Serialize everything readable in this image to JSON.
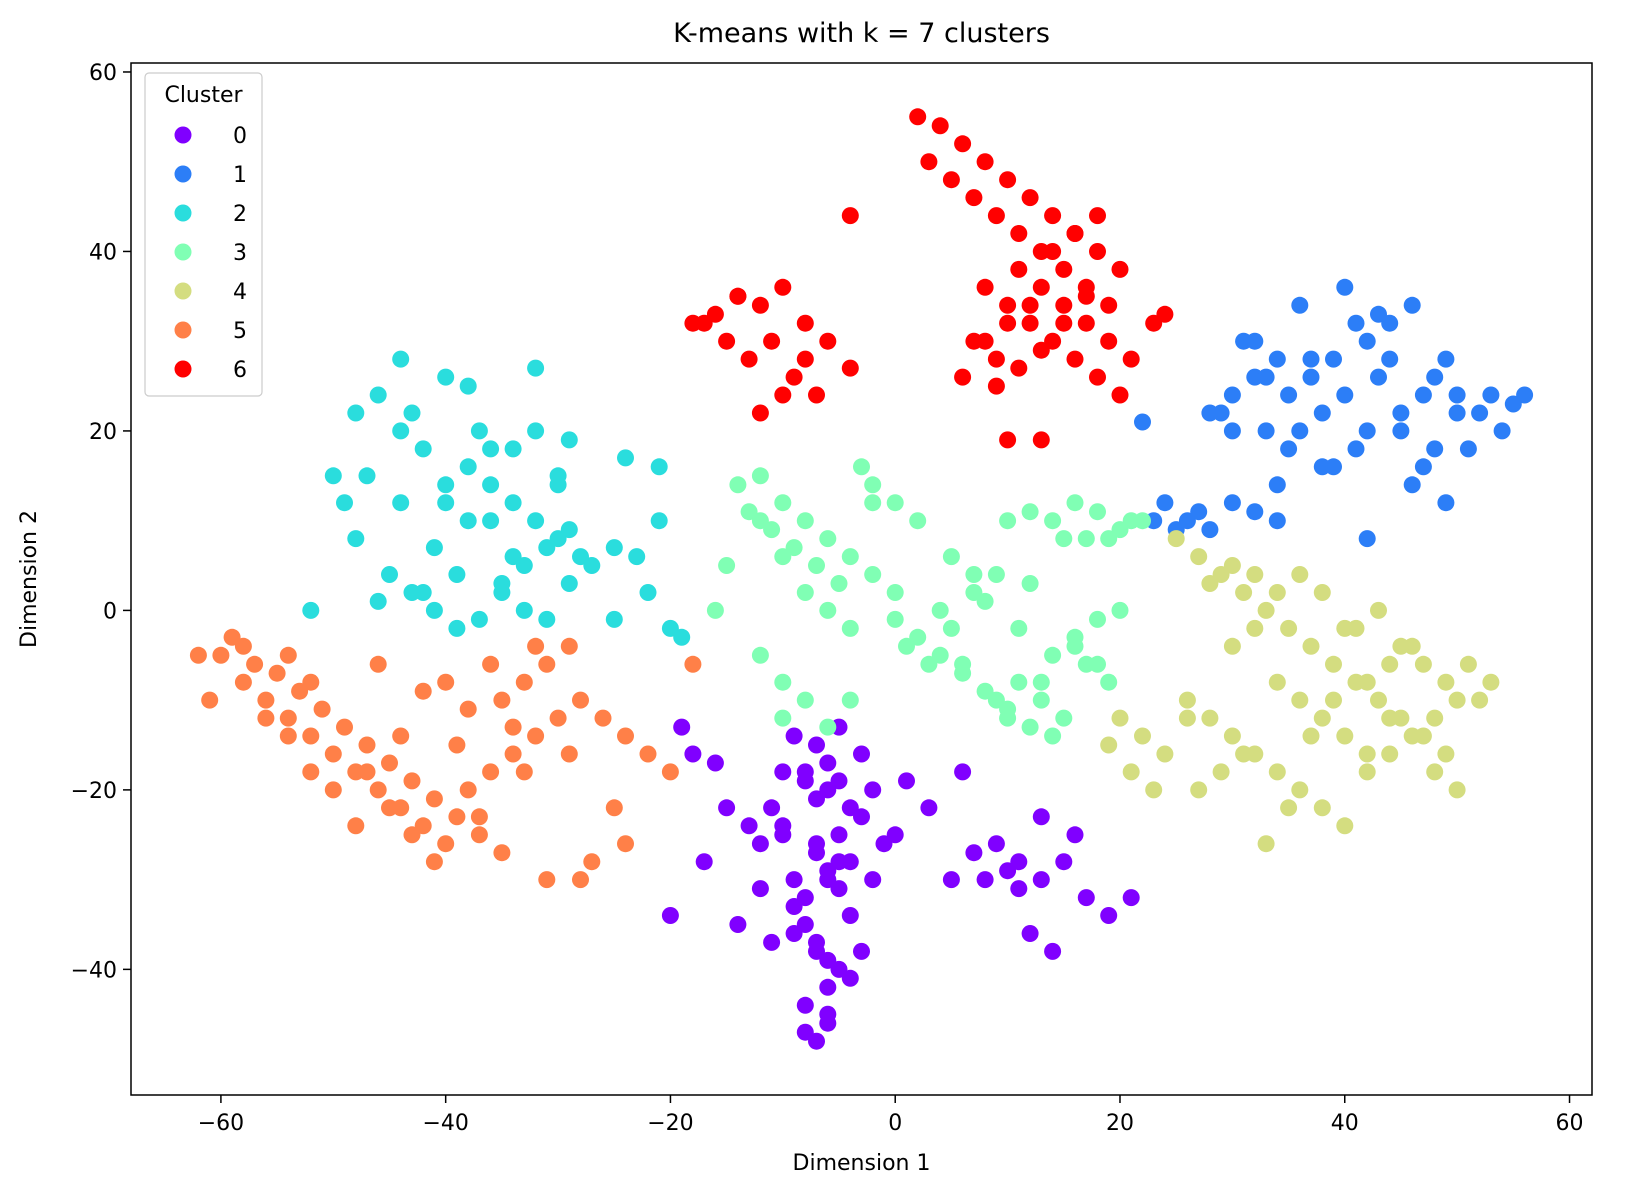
{
  "chart_data": {
    "type": "scatter",
    "title": "K-means with k = 7 clusters",
    "xlabel": "Dimension 1",
    "ylabel": "Dimension 2",
    "xlim": [
      -68,
      62
    ],
    "ylim": [
      -54,
      61
    ],
    "xticks": [
      -60,
      -40,
      -20,
      0,
      20,
      40,
      60
    ],
    "yticks": [
      -40,
      -20,
      0,
      20,
      40,
      60
    ],
    "grid": false,
    "legend": {
      "title": "Cluster",
      "placement": "top-left"
    },
    "series": [
      {
        "name": "0",
        "color": "#8000ff",
        "x": [
          -9,
          -7,
          -5,
          -3,
          -8,
          -6,
          -4,
          -10,
          -7,
          -5,
          -6,
          -8,
          -4,
          -9,
          -7,
          -5,
          -6,
          -8,
          -10,
          -7,
          -6,
          -5,
          -9,
          -8,
          -7,
          -6,
          -4,
          -11,
          -12,
          -6,
          -2,
          -3,
          -5,
          -7,
          -8,
          -6,
          -5,
          -9,
          -4,
          -6,
          -7,
          -8,
          -3,
          -2,
          -1,
          -13,
          -12,
          -10,
          -16,
          -18,
          -15,
          -14,
          -11,
          -17,
          -19,
          -20,
          0,
          1,
          3,
          5,
          7,
          9,
          11,
          13,
          15,
          17,
          19,
          21,
          12,
          14,
          16,
          13,
          11,
          10,
          6,
          8
        ],
        "y": [
          -14,
          -15,
          -13,
          -16,
          -18,
          -20,
          -22,
          -24,
          -26,
          -28,
          -30,
          -32,
          -34,
          -36,
          -38,
          -40,
          -42,
          -44,
          -25,
          -27,
          -29,
          -31,
          -33,
          -35,
          -37,
          -39,
          -41,
          -22,
          -26,
          -46,
          -20,
          -23,
          -25,
          -21,
          -19,
          -17,
          -19,
          -30,
          -28,
          -45,
          -48,
          -47,
          -38,
          -30,
          -26,
          -24,
          -31,
          -18,
          -17,
          -16,
          -22,
          -35,
          -37,
          -28,
          -13,
          -34,
          -25,
          -19,
          -22,
          -30,
          -27,
          -26,
          -28,
          -30,
          -28,
          -32,
          -34,
          -32,
          -36,
          -38,
          -25,
          -23,
          -31,
          -29,
          -18,
          -30
        ]
      },
      {
        "name": "1",
        "color": "#2c7ef7",
        "x": [
          28,
          30,
          32,
          34,
          36,
          38,
          40,
          42,
          44,
          46,
          48,
          50,
          52,
          54,
          56,
          31,
          33,
          35,
          37,
          39,
          41,
          43,
          45,
          47,
          49,
          51,
          29,
          34,
          38,
          42,
          46,
          50,
          36,
          40,
          44,
          48,
          32,
          30,
          35,
          45,
          41,
          43,
          47,
          37,
          39,
          33,
          55,
          53,
          24,
          26,
          28,
          27,
          25,
          23,
          30,
          32,
          34,
          22,
          42,
          49
        ],
        "y": [
          22,
          24,
          26,
          28,
          20,
          22,
          24,
          30,
          32,
          34,
          26,
          24,
          22,
          20,
          24,
          30,
          20,
          18,
          28,
          16,
          18,
          26,
          20,
          24,
          28,
          18,
          22,
          14,
          16,
          20,
          14,
          22,
          34,
          36,
          28,
          18,
          30,
          20,
          24,
          22,
          32,
          33,
          16,
          26,
          28,
          26,
          23,
          24,
          12,
          10,
          9,
          11,
          9,
          10,
          12,
          11,
          10,
          21,
          8,
          12
        ]
      },
      {
        "name": "2",
        "color": "#2adddd",
        "x": [
          -48,
          -46,
          -44,
          -42,
          -40,
          -38,
          -36,
          -34,
          -32,
          -30,
          -28,
          -45,
          -43,
          -41,
          -39,
          -37,
          -35,
          -33,
          -31,
          -29,
          -47,
          -44,
          -40,
          -36,
          -32,
          -30,
          -38,
          -34,
          -42,
          -46,
          -48,
          -49,
          -50,
          -41,
          -39,
          -35,
          -33,
          -31,
          -29,
          -27,
          -25,
          -23,
          -21,
          -22,
          -20,
          -19,
          -25,
          -52,
          -44,
          -38,
          -36,
          -30,
          -34,
          -40,
          -24,
          -21,
          -29,
          -32,
          -43,
          -37
        ],
        "y": [
          22,
          24,
          20,
          18,
          26,
          16,
          14,
          12,
          10,
          8,
          6,
          4,
          2,
          0,
          -2,
          -1,
          3,
          5,
          7,
          9,
          15,
          12,
          14,
          18,
          20,
          14,
          10,
          6,
          2,
          1,
          8,
          12,
          15,
          7,
          4,
          2,
          0,
          -1,
          3,
          5,
          7,
          6,
          10,
          2,
          -2,
          -3,
          -1,
          0,
          28,
          25,
          10,
          15,
          18,
          12,
          17,
          16,
          19,
          27,
          22,
          20
        ]
      },
      {
        "name": "3",
        "color": "#80ffb4",
        "x": [
          -12,
          -10,
          -8,
          -6,
          -4,
          -2,
          0,
          -14,
          -12,
          -10,
          -8,
          -6,
          -4,
          -2,
          -13,
          -11,
          -9,
          -7,
          -5,
          -3,
          -15,
          -16,
          -12,
          -10,
          -8,
          0,
          2,
          4,
          6,
          8,
          10,
          12,
          14,
          16,
          18,
          20,
          1,
          3,
          5,
          7,
          9,
          11,
          13,
          15,
          17,
          19,
          4,
          8,
          12,
          16,
          6,
          10,
          14,
          18,
          9,
          13,
          11,
          7,
          5,
          15,
          -10,
          -6,
          -4,
          -2,
          0,
          2,
          20,
          22,
          18,
          14,
          12,
          10,
          16,
          19,
          21,
          17
        ],
        "y": [
          15,
          12,
          10,
          8,
          6,
          4,
          2,
          14,
          10,
          6,
          2,
          0,
          -2,
          12,
          11,
          9,
          7,
          5,
          3,
          16,
          5,
          0,
          -5,
          -8,
          -10,
          -1,
          -3,
          -5,
          -7,
          -9,
          -11,
          -13,
          -5,
          -3,
          -1,
          0,
          -4,
          -6,
          -2,
          2,
          4,
          -8,
          -10,
          -12,
          -6,
          -8,
          0,
          1,
          3,
          -4,
          -6,
          -12,
          -14,
          -6,
          -10,
          -8,
          -2,
          4,
          6,
          8,
          -12,
          -13,
          -10,
          14,
          12,
          10,
          9,
          10,
          11,
          10,
          11,
          10,
          12,
          8,
          10,
          8
        ]
      },
      {
        "name": "4",
        "color": "#d4dd80",
        "x": [
          25,
          27,
          29,
          31,
          33,
          35,
          37,
          39,
          41,
          43,
          45,
          47,
          49,
          51,
          53,
          26,
          28,
          30,
          32,
          34,
          36,
          38,
          40,
          42,
          44,
          46,
          48,
          50,
          30,
          32,
          34,
          36,
          38,
          40,
          42,
          44,
          46,
          24,
          22,
          20,
          19,
          21,
          23,
          33,
          35,
          37,
          39,
          41,
          43,
          45,
          47,
          49,
          27,
          29,
          31,
          36,
          38,
          40,
          42,
          44,
          48,
          50,
          52,
          34,
          32,
          30,
          28,
          26
        ],
        "y": [
          8,
          6,
          4,
          2,
          0,
          -2,
          -4,
          -6,
          -8,
          -10,
          -12,
          -14,
          -16,
          -6,
          -8,
          -10,
          -12,
          -14,
          -16,
          -18,
          -20,
          -22,
          -24,
          -18,
          -16,
          -14,
          -12,
          -10,
          -4,
          -2,
          -8,
          -10,
          -12,
          -14,
          -16,
          -6,
          -4,
          -16,
          -14,
          -12,
          -15,
          -18,
          -20,
          -26,
          -22,
          -14,
          -10,
          -2,
          0,
          -4,
          -6,
          -8,
          -20,
          -18,
          -16,
          4,
          2,
          -2,
          -8,
          -12,
          -18,
          -20,
          -10,
          2,
          4,
          5,
          3,
          -12
        ]
      },
      {
        "name": "5",
        "color": "#ff8048",
        "x": [
          -60,
          -58,
          -56,
          -54,
          -52,
          -50,
          -48,
          -46,
          -44,
          -42,
          -40,
          -38,
          -36,
          -34,
          -32,
          -30,
          -28,
          -26,
          -24,
          -22,
          -20,
          -18,
          -57,
          -55,
          -53,
          -51,
          -49,
          -47,
          -45,
          -43,
          -41,
          -39,
          -37,
          -35,
          -33,
          -31,
          -29,
          -27,
          -25,
          -59,
          -61,
          -62,
          -56,
          -52,
          -48,
          -44,
          -40,
          -36,
          -32,
          -28,
          -24,
          -42,
          -38,
          -34,
          -46,
          -50,
          -54,
          -33,
          -29,
          -31,
          -35,
          -41,
          -43,
          -45,
          -47,
          -39,
          -37,
          -52,
          -58,
          -54
        ],
        "y": [
          -5,
          -8,
          -10,
          -12,
          -14,
          -16,
          -18,
          -20,
          -22,
          -24,
          -26,
          -20,
          -18,
          -16,
          -14,
          -12,
          -10,
          -12,
          -14,
          -16,
          -18,
          -6,
          -6,
          -7,
          -9,
          -11,
          -13,
          -15,
          -17,
          -19,
          -21,
          -23,
          -25,
          -10,
          -8,
          -6,
          -4,
          -28,
          -22,
          -3,
          -10,
          -5,
          -12,
          -18,
          -24,
          -14,
          -8,
          -6,
          -4,
          -30,
          -26,
          -9,
          -11,
          -13,
          -6,
          -20,
          -5,
          -18,
          -16,
          -30,
          -27,
          -28,
          -25,
          -22,
          -18,
          -15,
          -23,
          -8,
          -4,
          -14
        ]
      },
      {
        "name": "6",
        "color": "#ff0000",
        "x": [
          -18,
          -16,
          -14,
          -12,
          -10,
          -8,
          -6,
          -13,
          -11,
          -9,
          -7,
          -15,
          -17,
          -12,
          -10,
          -8,
          -14,
          -4,
          2,
          4,
          6,
          8,
          10,
          12,
          14,
          16,
          18,
          20,
          3,
          5,
          7,
          9,
          11,
          13,
          15,
          17,
          19,
          8,
          10,
          12,
          14,
          16,
          18,
          20,
          7,
          9,
          11,
          13,
          15,
          17,
          19,
          21,
          6,
          8,
          10,
          12,
          14,
          16,
          18,
          9,
          11,
          13,
          15,
          17,
          23,
          24,
          -4,
          10,
          13
        ],
        "y": [
          32,
          33,
          35,
          34,
          36,
          32,
          30,
          28,
          30,
          26,
          24,
          30,
          32,
          22,
          24,
          28,
          35,
          27,
          55,
          54,
          52,
          50,
          48,
          46,
          44,
          42,
          40,
          38,
          50,
          48,
          46,
          44,
          42,
          40,
          38,
          36,
          34,
          36,
          34,
          32,
          30,
          28,
          26,
          24,
          30,
          28,
          38,
          36,
          34,
          32,
          30,
          28,
          26,
          30,
          32,
          34,
          40,
          42,
          44,
          25,
          27,
          29,
          32,
          35,
          32,
          33,
          44,
          19,
          19
        ]
      }
    ]
  }
}
